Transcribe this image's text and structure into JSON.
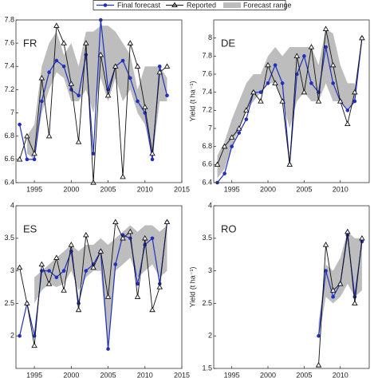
{
  "chart_data": [
    {
      "type": "line",
      "title": "FR",
      "xlim": [
        1992.5,
        2015
      ],
      "ylim": [
        6.4,
        7.8
      ],
      "xticks": [
        1995,
        2000,
        2005,
        2010,
        2015
      ],
      "yticks": [
        6.4,
        6.6,
        6.8,
        7,
        7.2,
        7.4,
        7.6,
        7.8
      ],
      "x": [
        1993,
        1994,
        1995,
        1996,
        1997,
        1998,
        1999,
        2000,
        2001,
        2002,
        2003,
        2004,
        2005,
        2006,
        2007,
        2008,
        2009,
        2010,
        2011,
        2012,
        2013
      ],
      "range": {
        "name": "Forecast range",
        "color": "#bdbdbd",
        "lower": [
          null,
          6.65,
          6.6,
          7.0,
          7.2,
          7.35,
          7.3,
          7.1,
          7.1,
          7.2,
          7.0,
          7.3,
          7.1,
          7.3,
          7.1,
          7.2,
          7.0,
          6.9,
          6.6,
          7.1,
          7.1
        ],
        "upper": [
          null,
          6.8,
          6.9,
          7.4,
          7.6,
          7.7,
          7.5,
          7.6,
          7.4,
          7.7,
          7.7,
          7.75,
          7.75,
          7.7,
          7.6,
          7.5,
          7.2,
          7.4,
          7.4,
          7.4,
          7.3
        ]
      },
      "series": [
        {
          "name": "Final forecast",
          "color": "#1f2fbf",
          "marker": "circle",
          "values": [
            6.9,
            6.6,
            6.6,
            7.1,
            7.35,
            7.45,
            7.4,
            7.2,
            7.15,
            7.5,
            6.65,
            7.8,
            7.2,
            7.4,
            7.45,
            7.3,
            7.1,
            7.0,
            6.6,
            7.4,
            7.15
          ]
        },
        {
          "name": "Reported",
          "color": "#111111",
          "marker": "triangle",
          "values": [
            6.6,
            6.8,
            6.65,
            7.3,
            6.8,
            7.75,
            7.6,
            7.25,
            6.75,
            7.6,
            6.4,
            7.5,
            7.15,
            7.4,
            6.45,
            7.6,
            7.4,
            7.05,
            6.65,
            7.35,
            7.4
          ]
        }
      ]
    },
    {
      "type": "line",
      "title": "DE",
      "ylabel": "Yield (t ha⁻¹)",
      "xlim": [
        1992.5,
        2014
      ],
      "ylim": [
        6.4,
        8.2
      ],
      "xticks": [
        1995,
        2000,
        2005,
        2010
      ],
      "yticks": [
        6.4,
        6.6,
        6.8,
        7,
        7.2,
        7.4,
        7.6,
        7.8,
        8
      ],
      "x": [
        1993,
        1994,
        1995,
        1996,
        1997,
        1998,
        1999,
        2000,
        2001,
        2002,
        2003,
        2004,
        2005,
        2006,
        2007,
        2008,
        2009,
        2010,
        2011,
        2012,
        2013
      ],
      "range": {
        "color": "#bdbdbd",
        "lower": [
          6.45,
          6.55,
          6.8,
          7.0,
          7.2,
          7.3,
          7.4,
          7.5,
          7.5,
          7.3,
          7.0,
          7.3,
          7.4,
          7.3,
          7.3,
          7.5,
          7.3,
          7.3,
          7.2,
          7.3,
          null
        ],
        "upper": [
          6.7,
          6.85,
          7.1,
          7.3,
          7.5,
          7.6,
          7.6,
          7.8,
          7.9,
          7.8,
          7.9,
          7.9,
          7.9,
          7.9,
          7.7,
          8.1,
          8.05,
          7.7,
          7.5,
          7.5,
          null
        ]
      },
      "series": [
        {
          "color": "#1f2fbf",
          "marker": "circle",
          "values": [
            6.4,
            6.5,
            6.8,
            6.95,
            7.1,
            7.4,
            7.4,
            7.5,
            7.7,
            7.5,
            6.6,
            7.6,
            7.8,
            7.5,
            7.4,
            7.9,
            7.5,
            7.3,
            7.2,
            7.3,
            8.0
          ]
        },
        {
          "color": "#111111",
          "marker": "triangle",
          "values": [
            6.6,
            6.8,
            6.9,
            7.0,
            7.2,
            7.4,
            7.3,
            7.7,
            7.5,
            7.3,
            6.6,
            7.8,
            7.4,
            7.9,
            7.3,
            8.1,
            7.7,
            7.3,
            7.05,
            7.4,
            8.0
          ]
        }
      ]
    },
    {
      "type": "line",
      "title": "ES",
      "xlim": [
        1992.5,
        2015
      ],
      "ylim": [
        1.5,
        4
      ],
      "xticks": [
        1995,
        2000,
        2005,
        2010,
        2015
      ],
      "yticks": [
        2,
        2.5,
        3,
        3.5,
        4
      ],
      "x": [
        1993,
        1994,
        1995,
        1996,
        1997,
        1998,
        1999,
        2000,
        2001,
        2002,
        2003,
        2004,
        2005,
        2006,
        2007,
        2008,
        2009,
        2010,
        2011,
        2012,
        2013
      ],
      "range": {
        "color": "#bdbdbd",
        "lower": [
          null,
          null,
          2.5,
          2.7,
          2.8,
          2.75,
          2.8,
          3.0,
          2.7,
          2.9,
          3.0,
          3.0,
          1.8,
          3.0,
          3.1,
          3.2,
          2.9,
          3.0,
          3.1,
          2.9,
          3.0
        ],
        "upper": [
          null,
          null,
          2.9,
          3.0,
          3.1,
          3.2,
          3.3,
          3.4,
          3.3,
          3.4,
          3.4,
          3.5,
          3.4,
          3.5,
          3.6,
          3.7,
          3.6,
          3.7,
          3.7,
          3.6,
          3.7
        ]
      },
      "series": [
        {
          "color": "#1f2fbf",
          "marker": "circle",
          "values": [
            2.0,
            2.5,
            2.0,
            3.0,
            3.0,
            2.9,
            3.0,
            3.3,
            2.5,
            3.0,
            3.1,
            3.3,
            1.8,
            3.1,
            3.55,
            3.5,
            2.8,
            3.4,
            3.5,
            2.8,
            3.75
          ]
        },
        {
          "color": "#111111",
          "marker": "triangle",
          "values": [
            3.05,
            2.5,
            1.85,
            3.1,
            2.8,
            3.2,
            2.7,
            3.4,
            2.4,
            3.55,
            3.05,
            3.3,
            2.6,
            3.75,
            3.5,
            3.6,
            2.6,
            3.5,
            2.4,
            2.75,
            3.75
          ]
        }
      ]
    },
    {
      "type": "line",
      "title": "RO",
      "ylabel": "Yield (t ha⁻¹)",
      "xlim": [
        1992.5,
        2014
      ],
      "ylim": [
        1.5,
        4
      ],
      "xticks": [
        1995,
        2000,
        2005,
        2010
      ],
      "yticks": [
        1.5,
        2,
        2.5,
        3,
        3.5,
        4
      ],
      "x": [
        2007,
        2008,
        2009,
        2010,
        2011,
        2012,
        2013
      ],
      "range": {
        "color": "#bdbdbd",
        "lower": [
          1.95,
          2.6,
          2.5,
          2.6,
          2.8,
          2.6,
          2.7
        ],
        "upper": [
          2.2,
          3.1,
          3.0,
          3.2,
          3.6,
          3.5,
          3.5
        ]
      },
      "series": [
        {
          "color": "#1f2fbf",
          "marker": "circle",
          "values": [
            2.0,
            3.0,
            2.6,
            2.8,
            3.55,
            2.6,
            3.45
          ]
        },
        {
          "color": "#111111",
          "marker": "triangle",
          "values": [
            1.55,
            3.4,
            2.7,
            2.8,
            3.6,
            2.5,
            3.5
          ]
        }
      ]
    }
  ]
}
